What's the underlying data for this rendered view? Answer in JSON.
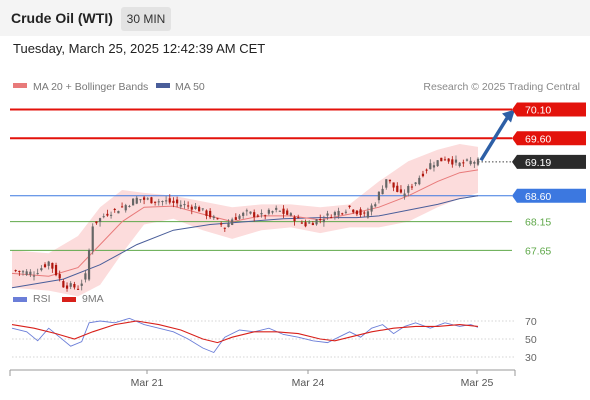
{
  "header": {
    "title": "Crude Oil (WTI)",
    "timeframe": "30 MIN",
    "datetime": "Tuesday, March 25, 2025 12:42:39 AM CET"
  },
  "legend": {
    "ma20": "MA 20 + Bollinger Bands",
    "ma50": "MA 50",
    "copyright": "Research © 2025 Trading Central",
    "rsi": "RSI",
    "ma9": "9MA"
  },
  "colors": {
    "resistance": "#e3120b",
    "current": "#2b2b2b",
    "pivot": "#3c78e0",
    "support": "#5fa84a",
    "candle_up": "#666666",
    "candle_down": "#b0160d",
    "ma20": "#e87a7a",
    "ma50": "#4a5e9a",
    "bollinger": "#fcdcdc",
    "arrow": "#2d5fa6",
    "rsi": "#6b7ed8",
    "rsi_ma": "#d8201a"
  },
  "chart_data": [
    {
      "type": "line",
      "title": "Crude Oil (WTI)",
      "timeframe": "30 MIN",
      "x_ticks": [
        "Mar 21",
        "Mar 24",
        "Mar 25"
      ],
      "ylim": [
        67.1,
        70.3
      ],
      "key_levels": [
        {
          "value": 70.1,
          "label": "70.10",
          "kind": "resistance"
        },
        {
          "value": 69.6,
          "label": "69.60",
          "kind": "resistance"
        },
        {
          "value": 69.19,
          "label": "69.19",
          "kind": "current"
        },
        {
          "value": 68.6,
          "label": "68.60",
          "kind": "pivot"
        },
        {
          "value": 68.15,
          "label": "68.15",
          "kind": "support"
        },
        {
          "value": 67.65,
          "label": "67.65",
          "kind": "support"
        }
      ],
      "series": [
        {
          "name": "MA 20 + Bollinger Bands"
        },
        {
          "name": "MA 50"
        }
      ],
      "close_path": [
        [
          0,
          67.3
        ],
        [
          6,
          67.25
        ],
        [
          10,
          67.45
        ],
        [
          14,
          67.05
        ],
        [
          18,
          67.0
        ],
        [
          20,
          67.2
        ],
        [
          22,
          68.1
        ],
        [
          26,
          68.3
        ],
        [
          30,
          68.4
        ],
        [
          34,
          68.55
        ],
        [
          38,
          68.52
        ],
        [
          42,
          68.5
        ],
        [
          46,
          68.45
        ],
        [
          50,
          68.4
        ],
        [
          54,
          68.25
        ],
        [
          56,
          68.15
        ],
        [
          58,
          68.05
        ],
        [
          60,
          68.2
        ],
        [
          64,
          68.3
        ],
        [
          68,
          68.25
        ],
        [
          72,
          68.35
        ],
        [
          76,
          68.25
        ],
        [
          80,
          68.1
        ],
        [
          84,
          68.2
        ],
        [
          88,
          68.3
        ],
        [
          92,
          68.4
        ],
        [
          96,
          68.25
        ],
        [
          99,
          68.5
        ],
        [
          102,
          68.9
        ],
        [
          106,
          68.6
        ],
        [
          110,
          68.85
        ],
        [
          114,
          69.15
        ],
        [
          118,
          69.25
        ],
        [
          122,
          69.15
        ],
        [
          126,
          69.2
        ],
        [
          127,
          69.19
        ]
      ],
      "ma20_path": [
        [
          0,
          67.25
        ],
        [
          10,
          67.2
        ],
        [
          18,
          67.35
        ],
        [
          24,
          67.75
        ],
        [
          30,
          68.15
        ],
        [
          36,
          68.4
        ],
        [
          44,
          68.42
        ],
        [
          52,
          68.28
        ],
        [
          60,
          68.15
        ],
        [
          68,
          68.25
        ],
        [
          76,
          68.25
        ],
        [
          84,
          68.18
        ],
        [
          92,
          68.28
        ],
        [
          100,
          68.4
        ],
        [
          108,
          68.6
        ],
        [
          116,
          68.85
        ],
        [
          122,
          69.0
        ],
        [
          127,
          69.05
        ]
      ],
      "bb_upper_path": [
        [
          0,
          67.65
        ],
        [
          10,
          67.6
        ],
        [
          18,
          67.9
        ],
        [
          24,
          68.4
        ],
        [
          30,
          68.7
        ],
        [
          36,
          68.65
        ],
        [
          44,
          68.6
        ],
        [
          52,
          68.5
        ],
        [
          60,
          68.4
        ],
        [
          68,
          68.45
        ],
        [
          76,
          68.45
        ],
        [
          84,
          68.4
        ],
        [
          92,
          68.45
        ],
        [
          100,
          68.85
        ],
        [
          108,
          69.2
        ],
        [
          116,
          69.4
        ],
        [
          122,
          69.5
        ],
        [
          127,
          69.45
        ]
      ],
      "bb_lower_path": [
        [
          0,
          67.0
        ],
        [
          10,
          66.95
        ],
        [
          18,
          66.85
        ],
        [
          24,
          67.05
        ],
        [
          30,
          67.6
        ],
        [
          36,
          68.1
        ],
        [
          44,
          68.2
        ],
        [
          52,
          68.0
        ],
        [
          60,
          67.85
        ],
        [
          68,
          68.0
        ],
        [
          76,
          68.05
        ],
        [
          84,
          67.95
        ],
        [
          92,
          68.05
        ],
        [
          100,
          68.05
        ],
        [
          108,
          68.15
        ],
        [
          116,
          68.4
        ],
        [
          122,
          68.55
        ],
        [
          127,
          68.65
        ]
      ],
      "ma50_path": [
        [
          0,
          67.0
        ],
        [
          14,
          67.15
        ],
        [
          24,
          67.4
        ],
        [
          34,
          67.75
        ],
        [
          44,
          68.0
        ],
        [
          54,
          68.1
        ],
        [
          64,
          68.15
        ],
        [
          74,
          68.2
        ],
        [
          84,
          68.22
        ],
        [
          94,
          68.22
        ],
        [
          100,
          68.25
        ],
        [
          108,
          68.35
        ],
        [
          116,
          68.45
        ],
        [
          122,
          68.55
        ],
        [
          127,
          68.6
        ]
      ],
      "projection": {
        "from": 69.2,
        "to": 70.1
      }
    },
    {
      "type": "line",
      "title": "RSI",
      "ylim": [
        20,
        80
      ],
      "y_ticks": [
        70,
        50,
        30
      ],
      "series": [
        {
          "name": "RSI",
          "path": [
            [
              0,
              62
            ],
            [
              4,
              58
            ],
            [
              7,
              48
            ],
            [
              10,
              62
            ],
            [
              13,
              52
            ],
            [
              16,
              42
            ],
            [
              19,
              47
            ],
            [
              21,
              68
            ],
            [
              24,
              70
            ],
            [
              28,
              68
            ],
            [
              32,
              73
            ],
            [
              36,
              66
            ],
            [
              40,
              62
            ],
            [
              44,
              58
            ],
            [
              48,
              50
            ],
            [
              52,
              40
            ],
            [
              55,
              35
            ],
            [
              58,
              52
            ],
            [
              62,
              60
            ],
            [
              66,
              58
            ],
            [
              70,
              62
            ],
            [
              74,
              55
            ],
            [
              78,
              52
            ],
            [
              82,
              48
            ],
            [
              86,
              46
            ],
            [
              89,
              52
            ],
            [
              92,
              58
            ],
            [
              95,
              52
            ],
            [
              98,
              62
            ],
            [
              101,
              66
            ],
            [
              104,
              56
            ],
            [
              107,
              64
            ],
            [
              110,
              68
            ],
            [
              114,
              62
            ],
            [
              118,
              68
            ],
            [
              122,
              64
            ],
            [
              125,
              66
            ],
            [
              127,
              63
            ]
          ]
        },
        {
          "name": "9MA",
          "path": [
            [
              0,
              66
            ],
            [
              6,
              62
            ],
            [
              12,
              56
            ],
            [
              17,
              50
            ],
            [
              22,
              58
            ],
            [
              28,
              66
            ],
            [
              34,
              70
            ],
            [
              40,
              66
            ],
            [
              46,
              60
            ],
            [
              52,
              50
            ],
            [
              56,
              46
            ],
            [
              60,
              52
            ],
            [
              66,
              58
            ],
            [
              72,
              58
            ],
            [
              78,
              56
            ],
            [
              84,
              50
            ],
            [
              88,
              48
            ],
            [
              92,
              52
            ],
            [
              98,
              58
            ],
            [
              104,
              62
            ],
            [
              110,
              64
            ],
            [
              116,
              64
            ],
            [
              122,
              66
            ],
            [
              127,
              64
            ]
          ]
        }
      ]
    }
  ]
}
